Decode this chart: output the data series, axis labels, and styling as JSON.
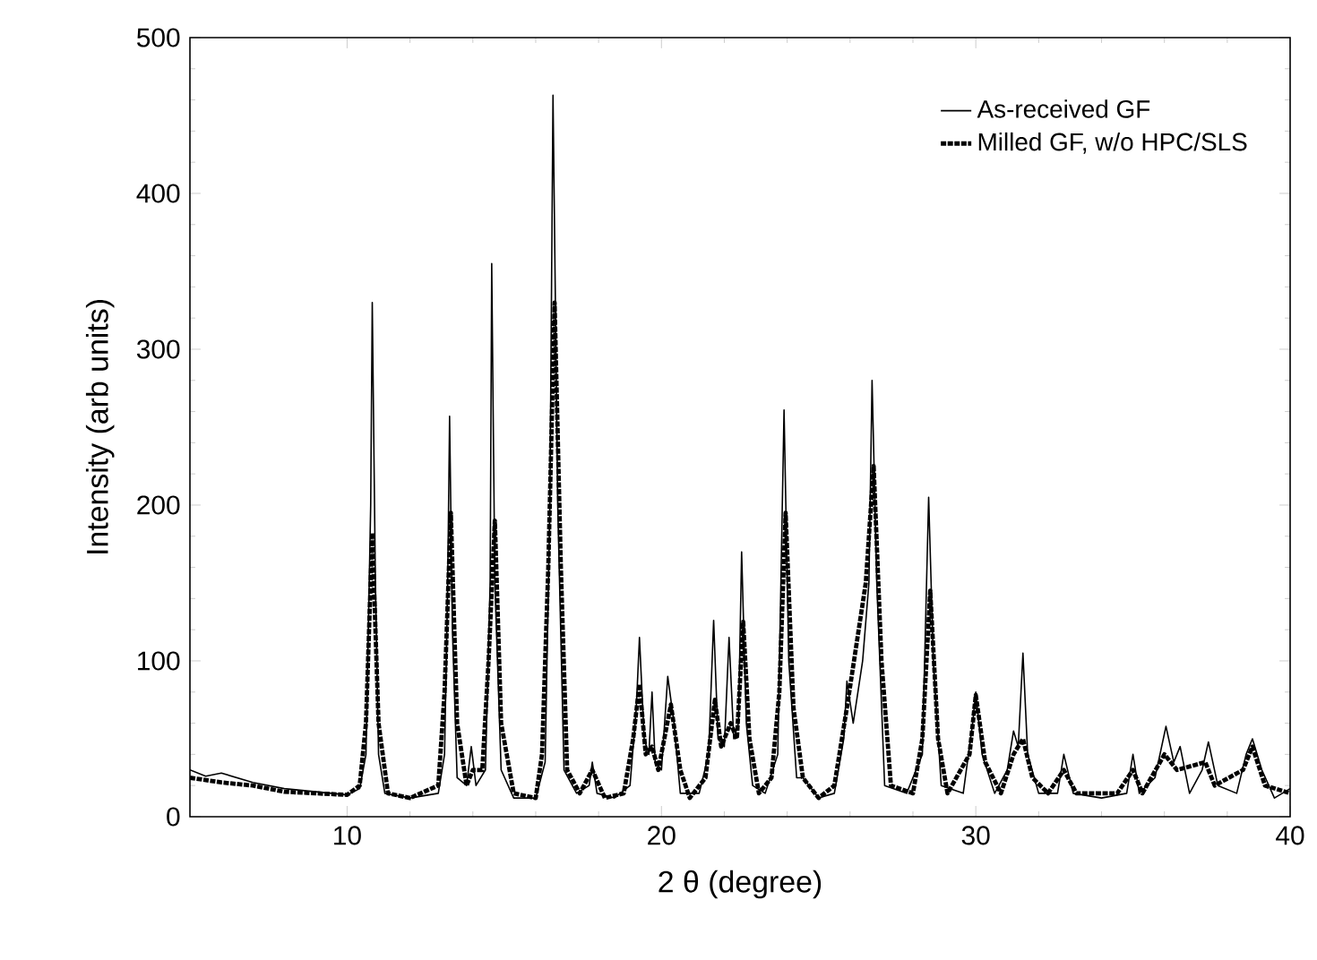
{
  "chart_data": {
    "type": "line",
    "xlabel": "2 θ (degree)",
    "ylabel": "Intensity (arb units)",
    "xlim": [
      5,
      40
    ],
    "ylim": [
      0,
      500
    ],
    "xticks": [
      10,
      20,
      30,
      40
    ],
    "yticks": [
      0,
      100,
      200,
      300,
      400,
      500
    ],
    "grid": false,
    "legend": "top right",
    "marker": "none",
    "series": [
      {
        "name": "As-received GF",
        "color": "#000000",
        "line_style": "solid",
        "x": [
          5,
          5.5,
          6,
          7,
          8,
          9,
          10,
          10.4,
          10.6,
          10.75,
          10.8,
          10.9,
          11.0,
          11.2,
          12,
          12.9,
          13.1,
          13.2,
          13.26,
          13.35,
          13.5,
          13.8,
          13.95,
          14.1,
          14.4,
          14.55,
          14.6,
          14.7,
          14.9,
          15.3,
          16,
          16.3,
          16.45,
          16.55,
          16.7,
          16.9,
          17.3,
          17.7,
          17.8,
          17.95,
          18.5,
          19,
          19.2,
          19.3,
          19.45,
          19.6,
          19.7,
          19.8,
          20.0,
          20.2,
          20.4,
          20.6,
          21.2,
          21.5,
          21.66,
          21.8,
          22.0,
          22.15,
          22.3,
          22.45,
          22.55,
          22.7,
          22.9,
          23.3,
          23.7,
          23.9,
          24.05,
          24.3,
          24.5,
          25,
          25.5,
          25.8,
          25.9,
          26.1,
          26.4,
          26.6,
          26.7,
          26.85,
          27.1,
          27.8,
          28.3,
          28.5,
          28.65,
          28.9,
          29.6,
          29.9,
          30.0,
          30.2,
          30.6,
          31.0,
          31.2,
          31.35,
          31.5,
          31.65,
          32.0,
          32.6,
          32.8,
          33.1,
          34,
          34.8,
          35.0,
          35.2,
          35.7,
          36.05,
          36.3,
          36.5,
          36.8,
          37.2,
          37.4,
          37.7,
          38.3,
          38.6,
          38.8,
          39.1,
          39.5,
          40
        ],
        "values": [
          30,
          26,
          28,
          22,
          18,
          16,
          14,
          18,
          40,
          200,
          330,
          150,
          40,
          15,
          12,
          15,
          40,
          150,
          257,
          120,
          25,
          20,
          45,
          20,
          30,
          150,
          355,
          150,
          30,
          12,
          12,
          35,
          200,
          463,
          200,
          30,
          15,
          20,
          35,
          15,
          12,
          20,
          70,
          115,
          50,
          40,
          80,
          35,
          30,
          90,
          60,
          15,
          15,
          40,
          126,
          50,
          45,
          115,
          50,
          60,
          170,
          60,
          20,
          15,
          40,
          261,
          100,
          25,
          25,
          12,
          15,
          50,
          87,
          60,
          100,
          150,
          280,
          150,
          20,
          15,
          40,
          205,
          100,
          20,
          15,
          60,
          80,
          40,
          15,
          30,
          55,
          45,
          105,
          40,
          15,
          15,
          40,
          15,
          12,
          15,
          40,
          15,
          25,
          58,
          35,
          45,
          15,
          30,
          48,
          20,
          15,
          40,
          50,
          30,
          12,
          18
        ]
      },
      {
        "name": "Milled GF, w/o HPC/SLS",
        "color": "#000000",
        "line_style": "dashed",
        "x": [
          5,
          6,
          7,
          8,
          9,
          10,
          10.4,
          10.6,
          10.8,
          11.0,
          11.3,
          12,
          12.9,
          13.1,
          13.3,
          13.5,
          13.8,
          14.0,
          14.3,
          14.5,
          14.7,
          14.9,
          15.3,
          16,
          16.2,
          16.4,
          16.6,
          16.8,
          17.0,
          17.4,
          17.8,
          18.2,
          18.8,
          19.1,
          19.3,
          19.5,
          19.7,
          19.9,
          20.3,
          20.6,
          20.9,
          21.4,
          21.7,
          21.9,
          22.2,
          22.4,
          22.6,
          22.8,
          23.1,
          23.5,
          23.75,
          23.95,
          24.2,
          24.5,
          25,
          25.5,
          25.9,
          26.2,
          26.5,
          26.75,
          27.0,
          27.3,
          28,
          28.3,
          28.55,
          28.8,
          29.1,
          29.8,
          30.0,
          30.3,
          30.8,
          31.2,
          31.5,
          31.8,
          32.3,
          32.8,
          33.2,
          34.5,
          35.0,
          35.3,
          36.0,
          36.4,
          37.3,
          37.6,
          38.5,
          38.8,
          39.2,
          40
        ],
        "values": [
          25,
          22,
          20,
          16,
          15,
          14,
          20,
          60,
          182,
          60,
          15,
          12,
          20,
          80,
          195,
          60,
          20,
          30,
          30,
          100,
          190,
          60,
          15,
          12,
          40,
          160,
          330,
          160,
          30,
          15,
          30,
          12,
          15,
          50,
          85,
          40,
          45,
          30,
          72,
          30,
          12,
          25,
          75,
          45,
          60,
          50,
          125,
          50,
          15,
          25,
          80,
          195,
          70,
          25,
          12,
          20,
          70,
          110,
          150,
          225,
          100,
          20,
          15,
          50,
          145,
          50,
          15,
          40,
          78,
          35,
          15,
          40,
          50,
          25,
          15,
          30,
          15,
          15,
          30,
          15,
          40,
          30,
          35,
          20,
          30,
          45,
          20,
          15
        ]
      }
    ]
  }
}
